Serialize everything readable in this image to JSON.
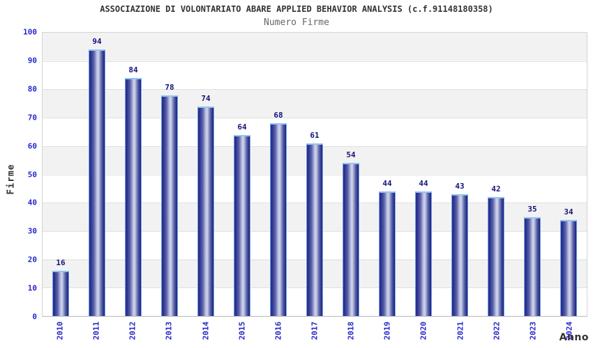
{
  "chart_data": {
    "type": "bar",
    "title": "ASSOCIAZIONE DI VOLONTARIATO ABARE APPLIED BEHAVIOR ANALYSIS (c.f.91148180358)",
    "subtitle": "Numero Firme",
    "xlabel": "Anno",
    "ylabel": "Firme",
    "categories": [
      "2010",
      "2011",
      "2012",
      "2013",
      "2014",
      "2015",
      "2016",
      "2017",
      "2018",
      "2019",
      "2020",
      "2021",
      "2022",
      "2023",
      "2024"
    ],
    "values": [
      16,
      94,
      84,
      78,
      74,
      64,
      68,
      61,
      54,
      44,
      44,
      43,
      42,
      35,
      34
    ],
    "ylim": [
      0,
      100
    ],
    "ytick_step": 10,
    "grid": "horizontal",
    "legend": "none",
    "plot_band_colors": [
      "#f2f2f2",
      "#ffffff"
    ],
    "colors": {
      "tick_label": "#2727cd",
      "value_label": "#13137d",
      "title": "#333333",
      "subtitle": "#666666",
      "bar_border": "#6ea6e8",
      "bar_cap": "#93c4f5",
      "bar_edge_dark": "#2a2f8e",
      "bar_mid": "#5a63a8",
      "bar_center_light": "#c9cee9",
      "bar_edge_darkest": "#1a1e7a",
      "gridline": "#e0e0e0"
    }
  }
}
